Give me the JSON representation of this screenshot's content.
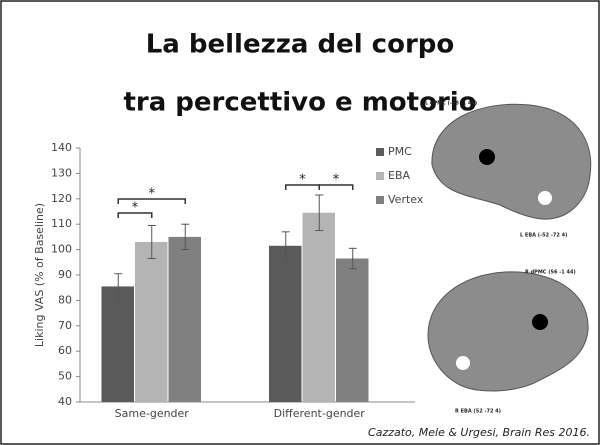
{
  "title_lines": [
    "La bellezza del corpo",
    "tra percettivo e motorio"
  ],
  "citation": "Cazzato, Mele & Urgesi, Brain Res 2016.",
  "brain_labels": [
    "L dPMC (-58 -1 44)",
    "L EBA (-52 -72 4)",
    "R dPMC (56 -1 44)",
    "R EBA (52 -72 4)"
  ],
  "chart_data": {
    "type": "bar",
    "ylabel": "Liking VAS (% of Baseline)",
    "categories": [
      "Same-gender",
      "Different-gender"
    ],
    "series": [
      {
        "name": "PMC",
        "color": "#5a5a5a",
        "values": [
          85.5,
          101.5
        ],
        "errors": [
          5,
          5.5
        ]
      },
      {
        "name": "EBA",
        "color": "#b4b4b4",
        "values": [
          103,
          114.5
        ],
        "errors": [
          6.5,
          7
        ]
      },
      {
        "name": "Vertex",
        "color": "#808080",
        "values": [
          105,
          96.5
        ],
        "errors": [
          5,
          4
        ]
      }
    ],
    "ylim": [
      40,
      140
    ],
    "yticks": [
      40,
      50,
      60,
      70,
      80,
      90,
      100,
      110,
      120,
      130,
      140
    ],
    "annotations": [
      "*",
      "*",
      "*",
      "*"
    ]
  }
}
